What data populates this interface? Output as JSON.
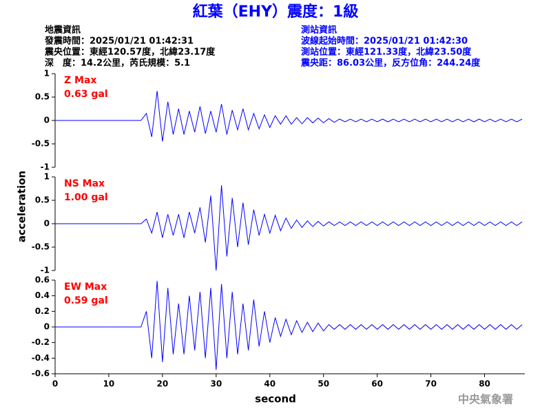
{
  "header": {
    "title": "紅葉（EHY）震度：1級",
    "left": [
      "地震資訊",
      "發震時間：2025/01/21 01:42:31",
      "震央位置：東經120.57度，北緯23.17度",
      "深　度：14.2公里，芮氏規模：5.1"
    ],
    "right": [
      "測站資訊",
      "波線起始時間：2025/01/21 01:42:30",
      "測站位置：東經121.33度，北緯23.50度",
      "震央距：86.03公里，反方位角：244.24度"
    ]
  },
  "footer": "中央氣象署",
  "chart_data": [
    {
      "type": "line",
      "color": "#0000ff",
      "annotations": [
        "Z Max",
        "0.63 gal"
      ],
      "xlim": [
        0,
        87.5
      ],
      "ylim": [
        -1,
        1
      ],
      "yticks": [
        -1,
        -0.5,
        0,
        0.5,
        1
      ],
      "x": [
        0,
        1,
        2,
        3,
        4,
        5,
        6,
        7,
        8,
        9,
        10,
        11,
        12,
        13,
        14,
        15,
        16,
        17,
        18,
        19,
        20,
        21,
        22,
        23,
        24,
        25,
        26,
        27,
        28,
        29,
        30,
        31,
        32,
        33,
        34,
        35,
        36,
        37,
        38,
        39,
        40,
        41,
        42,
        43,
        44,
        45,
        46,
        47,
        48,
        49,
        50,
        51,
        52,
        53,
        54,
        55,
        56,
        57,
        58,
        59,
        60,
        61,
        62,
        63,
        64,
        65,
        66,
        67,
        68,
        69,
        70,
        71,
        72,
        73,
        74,
        75,
        76,
        77,
        78,
        79,
        80,
        81,
        82,
        83,
        84,
        85,
        86,
        87
      ],
      "values": [
        0,
        0,
        0,
        0,
        0,
        0,
        0,
        0,
        0,
        0,
        0,
        0,
        0,
        0,
        0,
        0,
        0,
        0.15,
        -0.35,
        0.63,
        -0.45,
        0.4,
        -0.3,
        0.25,
        -0.3,
        0.2,
        -0.25,
        0.3,
        -0.28,
        0.2,
        -0.25,
        0.35,
        -0.3,
        0.22,
        -0.2,
        0.25,
        -0.2,
        0.15,
        -0.18,
        0.12,
        -0.15,
        0.1,
        -0.08,
        0.1,
        -0.08,
        0.06,
        -0.07,
        0.06,
        -0.05,
        0.05,
        -0.05,
        0.04,
        -0.04,
        0.03,
        -0.03,
        0.03,
        -0.03,
        0.03,
        -0.03,
        0.03,
        -0.03,
        0.03,
        -0.03,
        0.03,
        -0.03,
        0.03,
        -0.03,
        0.03,
        -0.03,
        0.03,
        -0.03,
        0.03,
        -0.03,
        0.03,
        -0.03,
        0.03,
        -0.03,
        0.03,
        -0.03,
        0.03,
        -0.03,
        0.03,
        -0.03,
        0.03,
        -0.03,
        0.03,
        -0.03,
        0.03
      ]
    },
    {
      "type": "line",
      "color": "#0000ff",
      "annotations": [
        "NS Max",
        "1.00 gal"
      ],
      "ylabel": "acceleration",
      "xlim": [
        0,
        87.5
      ],
      "ylim": [
        -1,
        1
      ],
      "yticks": [
        -1,
        -0.5,
        0,
        0.5,
        1
      ],
      "x": [
        0,
        1,
        2,
        3,
        4,
        5,
        6,
        7,
        8,
        9,
        10,
        11,
        12,
        13,
        14,
        15,
        16,
        17,
        18,
        19,
        20,
        21,
        22,
        23,
        24,
        25,
        26,
        27,
        28,
        29,
        30,
        31,
        32,
        33,
        34,
        35,
        36,
        37,
        38,
        39,
        40,
        41,
        42,
        43,
        44,
        45,
        46,
        47,
        48,
        49,
        50,
        51,
        52,
        53,
        54,
        55,
        56,
        57,
        58,
        59,
        60,
        61,
        62,
        63,
        64,
        65,
        66,
        67,
        68,
        69,
        70,
        71,
        72,
        73,
        74,
        75,
        76,
        77,
        78,
        79,
        80,
        81,
        82,
        83,
        84,
        85,
        86,
        87
      ],
      "values": [
        0,
        0,
        0,
        0,
        0,
        0,
        0,
        0,
        0,
        0,
        0,
        0,
        0,
        0,
        0,
        0,
        0,
        0.1,
        -0.2,
        0.25,
        -0.3,
        0.2,
        -0.25,
        0.2,
        -0.3,
        0.25,
        -0.2,
        0.35,
        -0.4,
        0.6,
        -1.0,
        0.82,
        -0.7,
        0.55,
        -0.5,
        0.45,
        -0.45,
        0.3,
        -0.25,
        0.2,
        -0.2,
        0.18,
        -0.15,
        0.12,
        -0.1,
        0.08,
        -0.08,
        0.06,
        -0.06,
        0.05,
        -0.05,
        0.04,
        -0.04,
        0.04,
        -0.04,
        0.04,
        -0.04,
        0.04,
        -0.04,
        0.04,
        -0.04,
        0.04,
        -0.04,
        0.04,
        -0.04,
        0.04,
        -0.04,
        0.04,
        -0.04,
        0.04,
        -0.04,
        0.04,
        -0.04,
        0.04,
        -0.04,
        0.04,
        -0.04,
        0.04,
        -0.04,
        0.04,
        -0.04,
        0.04,
        -0.04,
        0.04,
        -0.04,
        0.04,
        -0.04,
        0.04
      ]
    },
    {
      "type": "line",
      "color": "#0000ff",
      "annotations": [
        "EW Max",
        "0.59 gal"
      ],
      "xlabel": "second",
      "xlim": [
        0,
        87.5
      ],
      "xticks": [
        0,
        10,
        20,
        30,
        40,
        50,
        60,
        70,
        80
      ],
      "ylim": [
        -0.6,
        0.6
      ],
      "yticks": [
        -0.6,
        -0.4,
        -0.2,
        0,
        0.2,
        0.4,
        0.6
      ],
      "x": [
        0,
        1,
        2,
        3,
        4,
        5,
        6,
        7,
        8,
        9,
        10,
        11,
        12,
        13,
        14,
        15,
        16,
        17,
        18,
        19,
        20,
        21,
        22,
        23,
        24,
        25,
        26,
        27,
        28,
        29,
        30,
        31,
        32,
        33,
        34,
        35,
        36,
        37,
        38,
        39,
        40,
        41,
        42,
        43,
        44,
        45,
        46,
        47,
        48,
        49,
        50,
        51,
        52,
        53,
        54,
        55,
        56,
        57,
        58,
        59,
        60,
        61,
        62,
        63,
        64,
        65,
        66,
        67,
        68,
        69,
        70,
        71,
        72,
        73,
        74,
        75,
        76,
        77,
        78,
        79,
        80,
        81,
        82,
        83,
        84,
        85,
        86,
        87
      ],
      "values": [
        0,
        0,
        0,
        0,
        0,
        0,
        0,
        0,
        0,
        0,
        0,
        0,
        0,
        0,
        0,
        0,
        0,
        0.2,
        -0.4,
        0.59,
        -0.45,
        0.5,
        -0.35,
        0.3,
        -0.35,
        0.4,
        -0.3,
        0.45,
        -0.4,
        0.5,
        -0.55,
        0.55,
        -0.4,
        0.45,
        -0.35,
        0.3,
        -0.3,
        0.35,
        -0.25,
        0.2,
        -0.2,
        0.12,
        -0.12,
        0.1,
        -0.1,
        0.08,
        -0.07,
        0.06,
        -0.06,
        0.05,
        -0.05,
        0.03,
        -0.03,
        0.03,
        -0.03,
        0.03,
        -0.03,
        0.03,
        -0.03,
        0.03,
        -0.03,
        0.03,
        -0.03,
        0.03,
        -0.03,
        0.03,
        -0.03,
        0.03,
        -0.03,
        0.03,
        -0.03,
        0.03,
        -0.03,
        0.03,
        -0.03,
        0.03,
        -0.03,
        0.03,
        -0.03,
        0.03,
        -0.03,
        0.03,
        -0.03,
        0.03,
        -0.03,
        0.03,
        -0.03,
        0.03
      ]
    }
  ]
}
